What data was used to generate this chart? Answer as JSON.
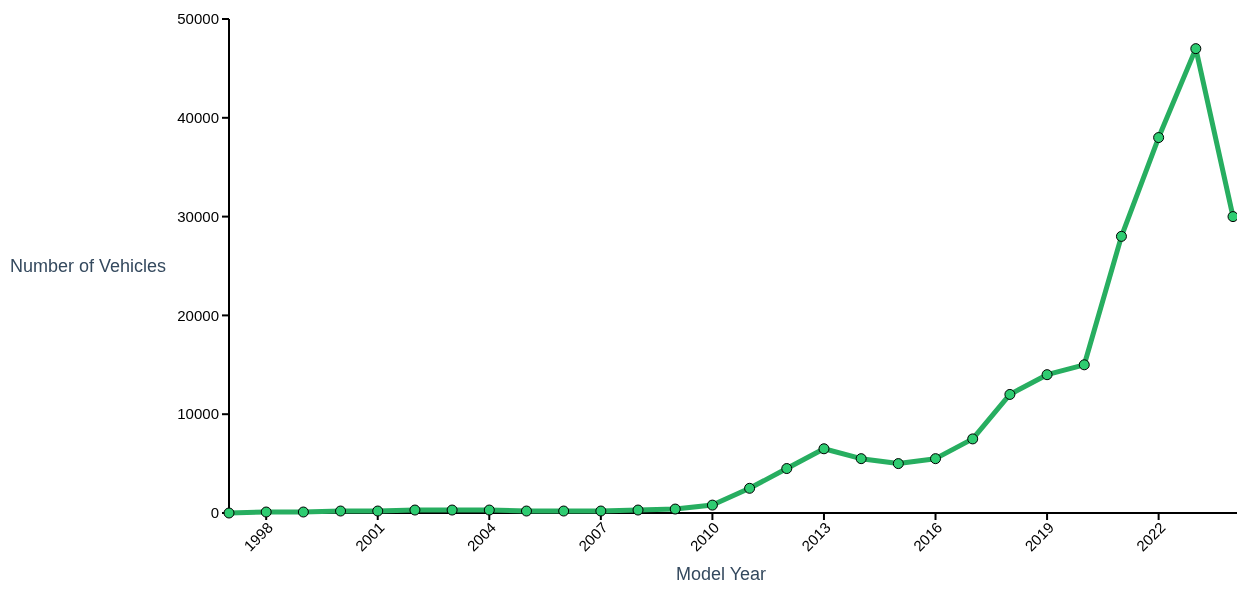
{
  "chart_data": {
    "type": "line",
    "xlabel": "Model Year",
    "ylabel": "Number of Vehicles",
    "x": [
      1997,
      1998,
      1999,
      2000,
      2001,
      2002,
      2003,
      2004,
      2005,
      2006,
      2007,
      2008,
      2009,
      2010,
      2011,
      2012,
      2013,
      2014,
      2015,
      2016,
      2017,
      2018,
      2019,
      2020,
      2021,
      2022,
      2023,
      2024
    ],
    "series": [
      {
        "color": "#27ae60",
        "values": [
          0,
          100,
          100,
          200,
          200,
          300,
          300,
          300,
          200,
          200,
          200,
          300,
          400,
          800,
          2500,
          4500,
          6500,
          5500,
          5000,
          5500,
          7500,
          12000,
          14000,
          15000,
          28000,
          38000,
          47000,
          30000
        ]
      }
    ],
    "xlim": [
      1997,
      2024
    ],
    "xticks": [
      1998,
      2001,
      2004,
      2007,
      2010,
      2013,
      2016,
      2019,
      2022
    ],
    "ylim": [
      0,
      50000
    ],
    "yticks": [
      0,
      10000,
      20000,
      30000,
      40000,
      50000
    ],
    "marker": "circle"
  }
}
